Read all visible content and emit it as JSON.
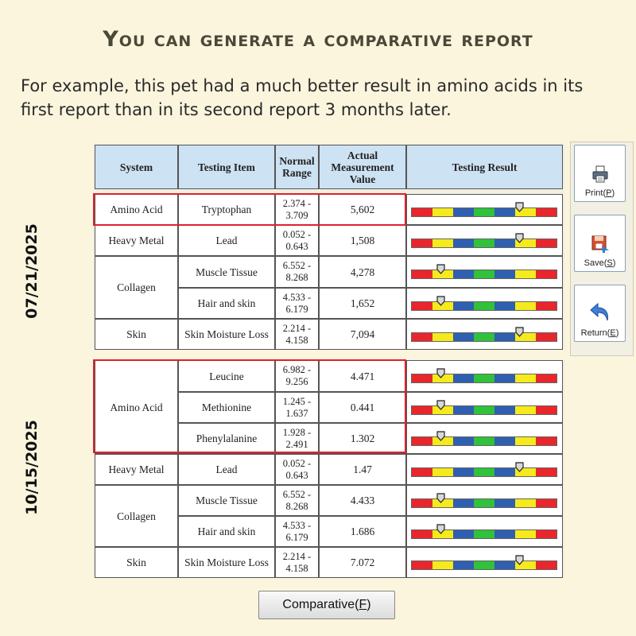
{
  "page": {
    "title": "You can generate a comparative report",
    "description": "For example, this pet had a much better result in amino acids in its first report than in its second report 3 months later."
  },
  "headers": {
    "system": "System",
    "testing_item": "Testing Item",
    "normal_range": "Normal Range",
    "actual_value": "Actual Measurement Value",
    "testing_result": "Testing Result"
  },
  "reports": [
    {
      "date": "07/21/2025",
      "rows": [
        {
          "system": "Amino Acid",
          "item": "Tryptophan",
          "range": "2.374 - 3.709",
          "value": "5,602",
          "level": 0.74
        },
        {
          "system": "Heavy Metal",
          "item": "Lead",
          "range": "0.052 - 0.643",
          "value": "1,508",
          "level": 0.74
        },
        {
          "system": "Collagen",
          "item": "Muscle Tissue",
          "range": "6.552 - 8.268",
          "value": "4,278",
          "level": 0.2
        },
        {
          "system": "Collagen",
          "item": "Hair and skin",
          "range": "4.533 - 6.179",
          "value": "1,652",
          "level": 0.2
        },
        {
          "system": "Skin",
          "item": "Skin Moisture Loss",
          "range": "2.214 - 4.158",
          "value": "7,094",
          "level": 0.74
        }
      ]
    },
    {
      "date": "10/15/2025",
      "rows": [
        {
          "system": "Amino Acid",
          "item": "Leucine",
          "range": "6.982 - 9.256",
          "value": "4.471",
          "level": 0.2
        },
        {
          "system": "Amino Acid",
          "item": "Methionine",
          "range": "1.245 - 1.637",
          "value": "0.441",
          "level": 0.2
        },
        {
          "system": "Amino Acid",
          "item": "Phenylalanine",
          "range": "1.928 - 2.491",
          "value": "1.302",
          "level": 0.2
        },
        {
          "system": "Heavy Metal",
          "item": "Lead",
          "range": "0.052 - 0.643",
          "value": "1.47",
          "level": 0.74
        },
        {
          "system": "Collagen",
          "item": "Muscle Tissue",
          "range": "6.552 - 8.268",
          "value": "4.433",
          "level": 0.2
        },
        {
          "system": "Collagen",
          "item": "Hair and skin",
          "range": "4.533 - 6.179",
          "value": "1.686",
          "level": 0.2
        },
        {
          "system": "Skin",
          "item": "Skin Moisture Loss",
          "range": "2.214 - 4.158",
          "value": "7.072",
          "level": 0.74
        }
      ]
    }
  ],
  "gauge_colors": [
    "#e8262c",
    "#f4ea1c",
    "#2f5fb0",
    "#2fc23a",
    "#2f5fb0",
    "#f4ea1c",
    "#e8262c"
  ],
  "highlight_color": "#e0202c",
  "buttons": {
    "print": {
      "label": "Print",
      "key": "P",
      "icon": "printer-icon"
    },
    "save": {
      "label": "Save",
      "key": "S",
      "icon": "save-icon"
    },
    "return": {
      "label": "Return",
      "key": "E",
      "icon": "return-arrow-icon"
    },
    "comparative": {
      "label": "Comparative",
      "key": "F"
    }
  }
}
